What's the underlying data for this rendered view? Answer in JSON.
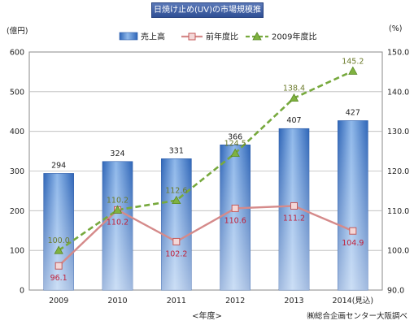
{
  "chart_data": {
    "type": "bar",
    "title": "日焼け止め(UV)の市場規模推移",
    "categories": [
      "2009",
      "2010",
      "2011",
      "2012",
      "2013",
      "2014(見込)"
    ],
    "series": [
      {
        "name": "売上高",
        "type": "bar",
        "axis": "left",
        "values": [
          294,
          324,
          331,
          366,
          407,
          427
        ]
      },
      {
        "name": "前年度比",
        "type": "line",
        "axis": "right",
        "values": [
          96.1,
          110.2,
          102.2,
          110.6,
          111.2,
          104.9
        ]
      },
      {
        "name": "2009年度比",
        "type": "line",
        "axis": "right",
        "dashed": true,
        "values": [
          100.0,
          110.2,
          112.6,
          124.5,
          138.4,
          145.2
        ]
      }
    ],
    "y_left": {
      "unit": "(億円)",
      "ylim": [
        0,
        600
      ],
      "ticks": [
        0,
        100,
        200,
        300,
        400,
        500,
        600
      ]
    },
    "y_right": {
      "unit": "(%)",
      "ylim": [
        90,
        150
      ],
      "ticks": [
        "90.0",
        "100.0",
        "110.0",
        "120.0",
        "130.0",
        "140.0",
        "150.0"
      ]
    },
    "xlabel": "<年度>",
    "source": "㈱総合企画センター大阪調べ",
    "grid": true,
    "legend_position": "top",
    "colors": {
      "bar": "#5b8fd6",
      "yoy": "#d58a8a",
      "vs2009": "#77a93d",
      "yoy_label": "#c0203a",
      "vs2009_label": "#6b7a2a"
    }
  }
}
